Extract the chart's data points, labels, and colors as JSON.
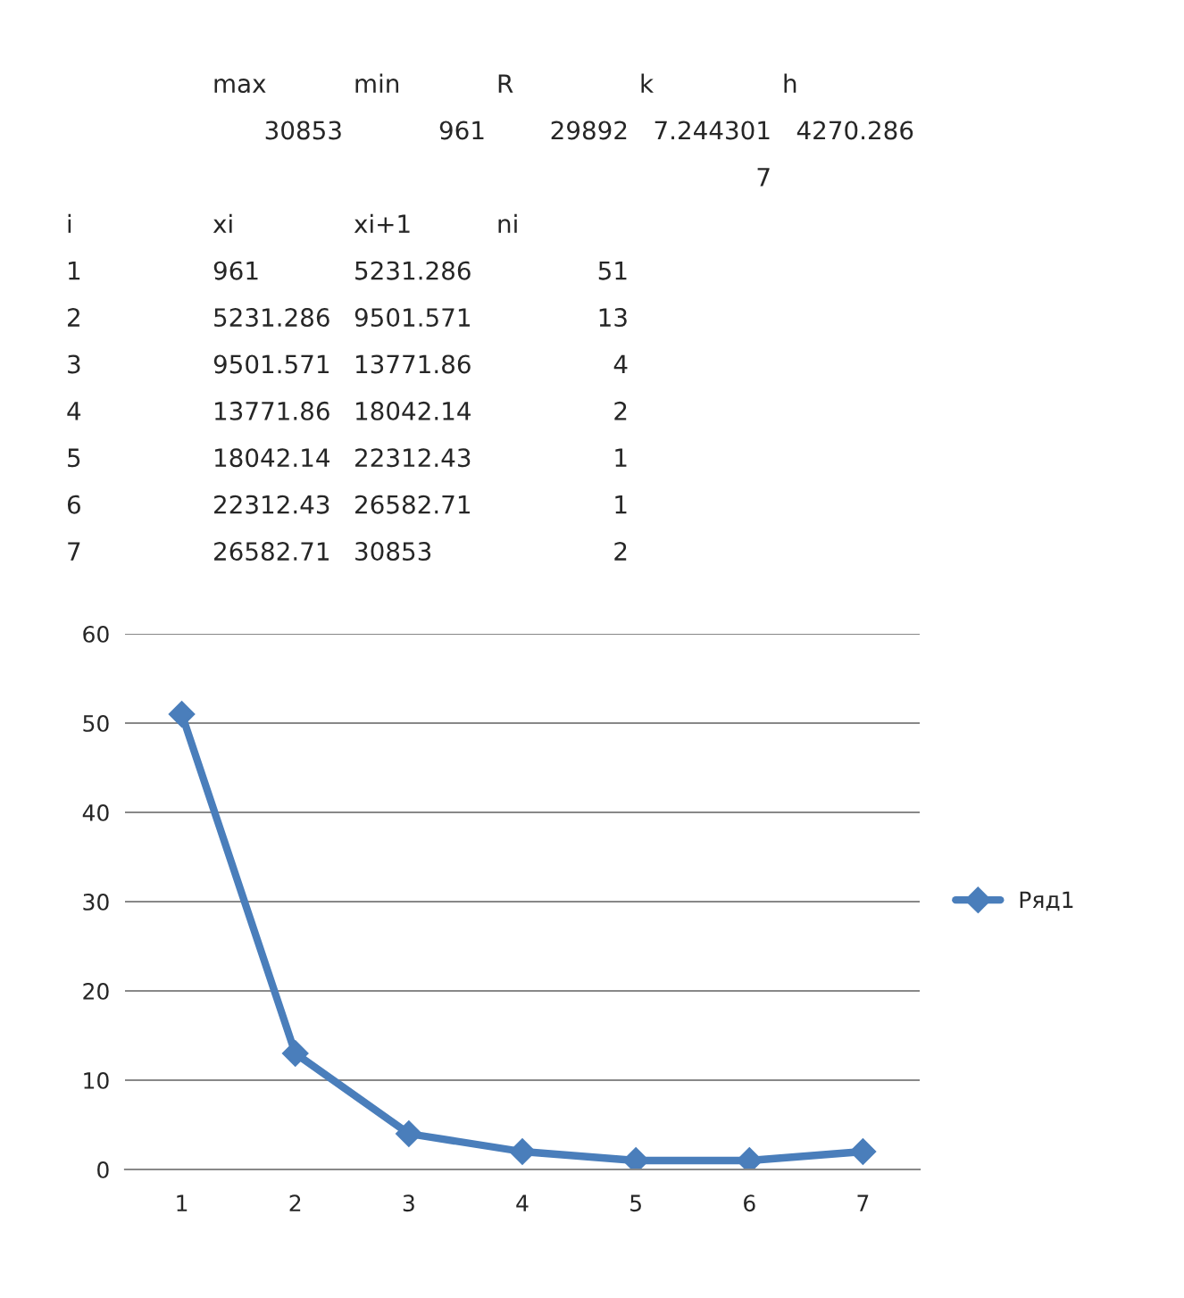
{
  "chart_data": {
    "type": "line",
    "categories": [
      "1",
      "2",
      "3",
      "4",
      "5",
      "6",
      "7"
    ],
    "series": [
      {
        "name": "Ряд1",
        "color": "#4a7ebb",
        "values": [
          51,
          13,
          4,
          2,
          1,
          1,
          2
        ]
      }
    ],
    "ylim": [
      0,
      60
    ],
    "yticks": [
      0,
      10,
      20,
      30,
      40,
      50,
      60
    ],
    "grid": "y",
    "legend": "right",
    "marker": "diamond",
    "line_style": "solid",
    "annotations": [
      "\tmax\tmin\tR\tk\th",
      "\t30853\t961\t29892\t7.244301\t4270.286",
      "\t\t\t\t7",
      "i\txi\txi+1\tni",
      "1\t961\t5231.286\t51",
      "2\t5231.286\t9501.571\t13",
      "3\t9501.571\t13771.86\t4",
      "4\t13771.86\t18042.14\t2",
      "5\t18042.14\t22312.43\t1",
      "6\t22312.43\t26582.71\t1",
      "7\t26582.71\t30853\t2"
    ]
  }
}
